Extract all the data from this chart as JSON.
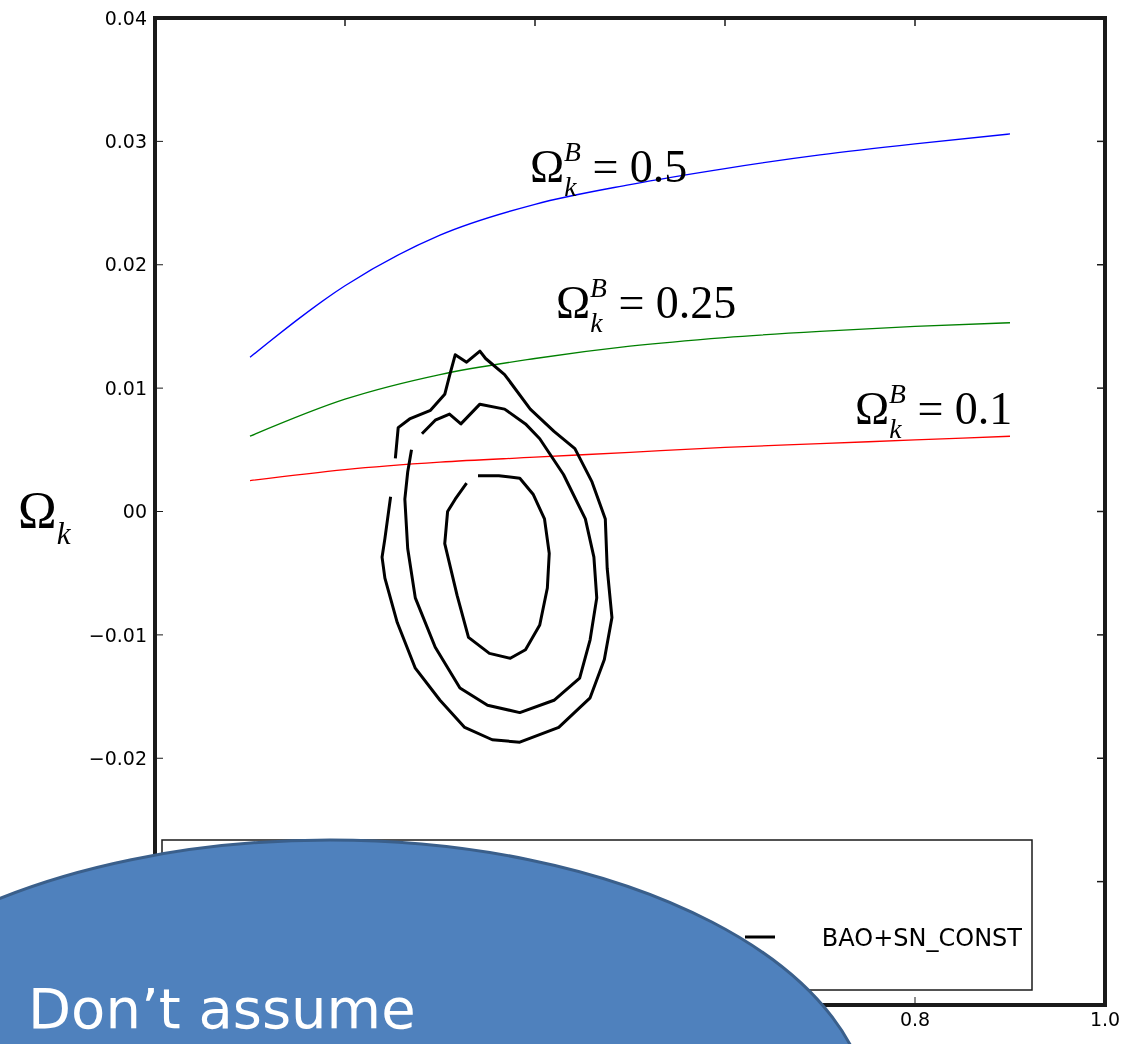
{
  "chart_data": {
    "type": "line",
    "ylabel": "Ω$_{k}$",
    "xlim": [
      0,
      1.0
    ],
    "xticks": [
      {
        "value": 0,
        "label": null
      },
      {
        "value": 0.2,
        "label": null
      },
      {
        "value": 0.4,
        "label": null
      },
      {
        "value": 0.6,
        "label": null
      },
      {
        "value": 0.8,
        "label": "0.8"
      },
      {
        "value": 1.0,
        "label": "1.0"
      }
    ],
    "ylim": [
      -0.04,
      0.04
    ],
    "yticks": [
      {
        "value": -0.04,
        "label": null
      },
      {
        "value": -0.03,
        "label": null
      },
      {
        "value": -0.02,
        "label": "−0.02"
      },
      {
        "value": -0.01,
        "label": "−0.01"
      },
      {
        "value": 0,
        "label": "00"
      },
      0.01,
      0.02,
      0.03,
      0.04
    ],
    "grid": false,
    "legend": "bottom",
    "series": [
      {
        "color": "#0000ff",
        "x": [
          0.1,
          0.2,
          0.3,
          0.4,
          0.5,
          0.6,
          0.7,
          0.8,
          0.9
        ],
        "values": [
          0.0125,
          0.0183,
          0.0224,
          0.0249,
          0.0265,
          0.0278,
          0.0289,
          0.0298,
          0.0306
        ]
      },
      {
        "color": "#008000",
        "x": [
          0.1,
          0.2,
          0.3,
          0.4,
          0.5,
          0.6,
          0.7,
          0.8,
          0.9
        ],
        "values": [
          0.0061,
          0.0091,
          0.0111,
          0.0124,
          0.0134,
          0.0141,
          0.0146,
          0.015,
          0.0153
        ]
      },
      {
        "color": "#ff0000",
        "x": [
          0.1,
          0.2,
          0.3,
          0.4,
          0.5,
          0.6,
          0.7,
          0.8,
          0.9
        ],
        "values": [
          0.0025,
          0.0034,
          0.004,
          0.0044,
          0.0048,
          0.0052,
          0.0055,
          0.0058,
          0.0061
        ]
      },
      {
        "name": "BAO+SN_CONST",
        "color": "#000000",
        "x": [
          0.34,
          0.362,
          0.384,
          0.398,
          0.41,
          0.415,
          0.413,
          0.405,
          0.39,
          0.374,
          0.352,
          0.33,
          0.318,
          0.305,
          0.308,
          0.316,
          0.328
        ],
        "values": [
          0.0029,
          0.0029,
          0.0027,
          0.0014,
          -0.0006,
          -0.0034,
          -0.0062,
          -0.0092,
          -0.0112,
          -0.0119,
          -0.0115,
          -0.0102,
          -0.0068,
          -0.0026,
          0.0,
          0.001,
          0.0023
        ]
      },
      {
        "color": "#000000",
        "x": [
          0.281,
          0.295,
          0.31,
          0.322,
          0.342,
          0.368,
          0.39,
          0.405,
          0.43,
          0.453,
          0.462,
          0.465,
          0.458,
          0.447,
          0.42,
          0.384,
          0.35,
          0.321,
          0.295,
          0.274,
          0.266,
          0.263,
          0.266,
          0.27
        ],
        "values": [
          0.0063,
          0.0074,
          0.0079,
          0.0071,
          0.0087,
          0.0083,
          0.0071,
          0.0059,
          0.003,
          -0.0006,
          -0.0037,
          -0.007,
          -0.0104,
          -0.0135,
          -0.0153,
          -0.0163,
          -0.0157,
          -0.0143,
          -0.011,
          -0.007,
          -0.003,
          0.001,
          0.0032,
          0.005
        ]
      },
      {
        "color": "#000000",
        "x": [
          0.253,
          0.256,
          0.268,
          0.29,
          0.305,
          0.31,
          0.316,
          0.328,
          0.342,
          0.348,
          0.368,
          0.395,
          0.42,
          0.442,
          0.46,
          0.474,
          0.476,
          0.481,
          0.473,
          0.458,
          0.425,
          0.384,
          0.355,
          0.326,
          0.3,
          0.274,
          0.255,
          0.242,
          0.239,
          0.242,
          0.248
        ],
        "values": [
          0.0043,
          0.0068,
          0.0075,
          0.0082,
          0.0095,
          0.011,
          0.0127,
          0.0121,
          0.013,
          0.0124,
          0.0111,
          0.0083,
          0.0065,
          0.0051,
          0.0024,
          -0.0006,
          -0.0046,
          -0.0086,
          -0.012,
          -0.0151,
          -0.0175,
          -0.0187,
          -0.0185,
          -0.0175,
          -0.0153,
          -0.0127,
          -0.009,
          -0.0054,
          -0.0037,
          -0.0022,
          0.0012
        ]
      }
    ],
    "annotations": [
      "Ω$_{k}$$^{B}$ = 0.5",
      "Ω$_{k}$$^{B}$ = 0.25",
      "Ω$_{k}$$^{B}$ = 0.1",
      "Don’t assume"
    ]
  }
}
